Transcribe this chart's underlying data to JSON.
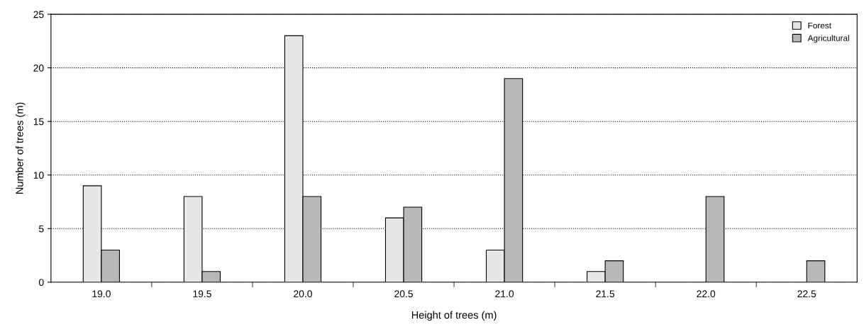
{
  "chart_data": {
    "type": "bar",
    "xlabel": "Height of trees (m)",
    "ylabel": "Number of trees (m)",
    "categories": [
      "19.0",
      "19.5",
      "20.0",
      "20.5",
      "21.0",
      "21.5",
      "22.0",
      "22.5"
    ],
    "series": [
      {
        "name": "Forest",
        "color": "#e6e7e9",
        "values": [
          9,
          8,
          23,
          6,
          3,
          1,
          null,
          null
        ]
      },
      {
        "name": "Agricultural",
        "color": "#b7b8ba",
        "values": [
          3,
          1,
          8,
          7,
          19,
          2,
          8,
          2
        ]
      }
    ],
    "ylim": [
      0,
      25
    ],
    "yticks": [
      0,
      5,
      10,
      15,
      20,
      25
    ],
    "grid": "y",
    "legend": "top right"
  }
}
